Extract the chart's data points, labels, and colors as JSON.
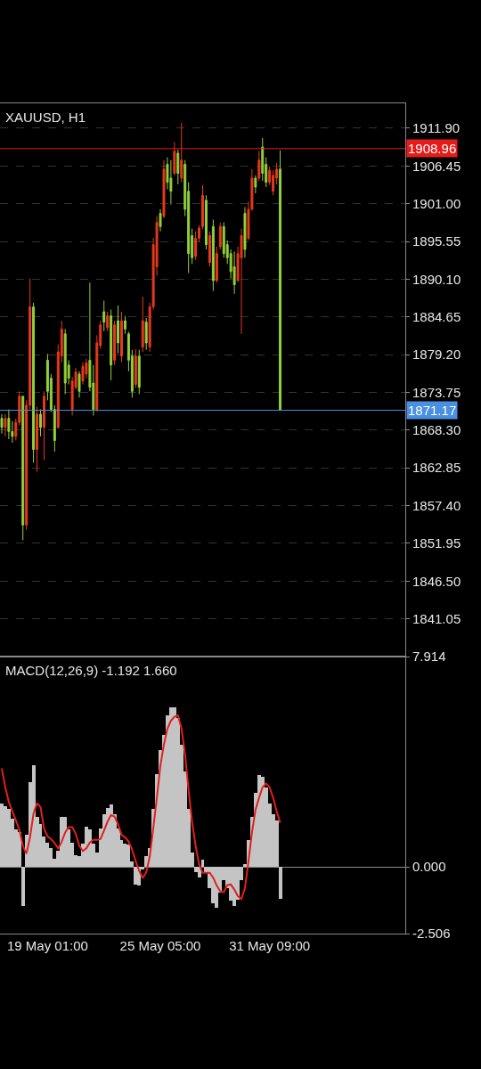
{
  "chart_data": [
    {
      "type": "candlestick",
      "title": "XAUUSD, H1",
      "categories": [
        null,
        null,
        null,
        null,
        null,
        null,
        null,
        null,
        null,
        null,
        null,
        null,
        null,
        null,
        null,
        null,
        null,
        null,
        null,
        null,
        null,
        null,
        null,
        null,
        null,
        null,
        null,
        null,
        null,
        null,
        null,
        null,
        null,
        null,
        null,
        null,
        null,
        null,
        null,
        null,
        null,
        null,
        null,
        null,
        null,
        null,
        null,
        null,
        null,
        null,
        null,
        null,
        null,
        null,
        null,
        null,
        null,
        null,
        null,
        null,
        null,
        null,
        null,
        null,
        null,
        null,
        null,
        null,
        null,
        null,
        null,
        null,
        null,
        null,
        null,
        null,
        null,
        null,
        null,
        null,
        null,
        null,
        null,
        null,
        null,
        null,
        null,
        null,
        null,
        null,
        null,
        null,
        null,
        null,
        null,
        null,
        null,
        null,
        null,
        null,
        null,
        null,
        null,
        null,
        null,
        null,
        null,
        null,
        null,
        null,
        null,
        null,
        null,
        null,
        null
      ],
      "ohlc": [
        [
          1870.0,
          1870.6,
          1867.8,
          1868.7
        ],
        [
          1868.7,
          1870.6,
          1867.4,
          1870.0
        ],
        [
          1870.0,
          1871.3,
          1867.0,
          1868.1
        ],
        [
          1868.1,
          1869.6,
          1866.5,
          1867.4
        ],
        [
          1867.4,
          1870.0,
          1866.8,
          1869.4
        ],
        [
          1869.4,
          1873.9,
          1869.0,
          1873.2
        ],
        [
          1873.2,
          1873.2,
          1852.4,
          1854.6
        ],
        [
          1854.6,
          1872.6,
          1853.9,
          1871.9
        ],
        [
          1871.9,
          1890.2,
          1871.3,
          1886.1
        ],
        [
          1886.1,
          1886.7,
          1863.6,
          1865.5
        ],
        [
          1865.5,
          1871.7,
          1862.3,
          1870.6
        ],
        [
          1870.6,
          1871.3,
          1867.4,
          1868.7
        ],
        [
          1868.7,
          1873.9,
          1864.0,
          1873.2
        ],
        [
          1878.4,
          1879.3,
          1872.6,
          1873.9
        ],
        [
          1875.8,
          1876.4,
          1870.9,
          1871.3
        ],
        [
          1871.3,
          1871.9,
          1865.2,
          1866.8
        ],
        [
          1868.7,
          1880.7,
          1868.5,
          1879.6
        ],
        [
          1879.0,
          1884.1,
          1878.1,
          1882.9
        ],
        [
          1882.2,
          1882.9,
          1873.5,
          1875.1
        ],
        [
          1877.7,
          1878.4,
          1874.9,
          1875.8
        ],
        [
          1871.3,
          1876.0,
          1870.4,
          1875.4
        ],
        [
          1874.5,
          1877.3,
          1874.2,
          1876.7
        ],
        [
          1876.4,
          1876.8,
          1873.0,
          1873.9
        ],
        [
          1875.4,
          1878.1,
          1874.9,
          1877.5
        ],
        [
          1876.4,
          1878.6,
          1875.8,
          1878.0
        ],
        [
          1878.4,
          1889.6,
          1873.9,
          1874.5
        ],
        [
          1875.1,
          1877.7,
          1870.4,
          1871.3
        ],
        [
          1871.3,
          1882.0,
          1871.0,
          1880.9
        ],
        [
          1880.5,
          1884.1,
          1880.0,
          1883.5
        ],
        [
          1885.4,
          1887.0,
          1882.6,
          1883.9
        ],
        [
          1883.1,
          1885.4,
          1882.6,
          1884.8
        ],
        [
          1884.8,
          1885.7,
          1875.5,
          1877.7
        ],
        [
          1878.4,
          1884.1,
          1877.7,
          1883.5
        ],
        [
          1884.1,
          1886.3,
          1879.4,
          1880.9
        ],
        [
          1879.0,
          1885.4,
          1878.1,
          1884.1
        ],
        [
          1884.1,
          1884.8,
          1882.2,
          1882.9
        ],
        [
          1882.2,
          1882.5,
          1876.8,
          1878.4
        ],
        [
          1879.0,
          1879.9,
          1873.0,
          1873.9
        ],
        [
          1874.9,
          1880.0,
          1874.4,
          1879.0
        ],
        [
          1879.0,
          1879.9,
          1873.5,
          1874.5
        ],
        [
          1880.3,
          1887.6,
          1879.6,
          1884.1
        ],
        [
          1883.9,
          1884.5,
          1879.9,
          1880.9
        ],
        [
          1880.3,
          1886.7,
          1879.6,
          1886.1
        ],
        [
          1886.1,
          1896.1,
          1885.7,
          1895.1
        ],
        [
          1891.9,
          1899.2,
          1890.6,
          1898.3
        ],
        [
          1899.6,
          1900.2,
          1897.0,
          1897.7
        ],
        [
          1899.2,
          1907.3,
          1898.9,
          1906.0
        ],
        [
          1906.7,
          1907.7,
          1903.1,
          1904.1
        ],
        [
          1904.7,
          1907.3,
          1900.9,
          1902.8
        ],
        [
          1905.4,
          1909.9,
          1905.1,
          1908.6
        ],
        [
          1908.3,
          1908.8,
          1903.8,
          1905.4
        ],
        [
          1904.7,
          1912.7,
          1904.1,
          1907.3
        ],
        [
          1906.7,
          1907.3,
          1899.2,
          1900.2
        ],
        [
          1902.8,
          1904.1,
          1891.0,
          1893.8
        ],
        [
          1896.4,
          1897.4,
          1892.3,
          1893.2
        ],
        [
          1893.4,
          1897.0,
          1892.9,
          1896.0
        ],
        [
          1896.0,
          1897.9,
          1895.5,
          1897.5
        ],
        [
          1897.7,
          1903.7,
          1897.3,
          1902.2
        ],
        [
          1901.5,
          1902.2,
          1894.4,
          1895.1
        ],
        [
          1892.5,
          1897.0,
          1891.9,
          1896.4
        ],
        [
          1897.7,
          1898.7,
          1888.4,
          1889.9
        ],
        [
          1889.9,
          1894.8,
          1889.6,
          1893.8
        ],
        [
          1894.8,
          1898.3,
          1894.4,
          1897.7
        ],
        [
          1897.7,
          1898.3,
          1893.2,
          1893.8
        ],
        [
          1895.1,
          1895.7,
          1892.3,
          1893.2
        ],
        [
          1893.8,
          1894.4,
          1890.2,
          1891.2
        ],
        [
          1891.9,
          1894.1,
          1888.0,
          1889.3
        ],
        [
          1889.9,
          1894.8,
          1889.7,
          1893.8
        ],
        [
          1893.2,
          1897.4,
          1882.2,
          1896.4
        ],
        [
          1899.6,
          1900.5,
          1893.2,
          1894.4
        ],
        [
          1896.0,
          1901.3,
          1895.7,
          1900.2
        ],
        [
          1900.2,
          1906.0,
          1900.0,
          1904.7
        ],
        [
          1904.7,
          1905.1,
          1902.5,
          1903.4
        ],
        [
          1904.7,
          1908.6,
          1904.3,
          1907.3
        ],
        [
          1909.2,
          1910.5,
          1904.3,
          1905.4
        ],
        [
          1906.7,
          1907.7,
          1903.4,
          1904.1
        ],
        [
          1904.1,
          1906.4,
          1903.7,
          1905.8
        ],
        [
          1902.8,
          1905.8,
          1902.2,
          1905.1
        ],
        [
          1904.7,
          1906.9,
          1903.8,
          1906.0
        ],
        [
          1906.0,
          1908.7,
          1871.17,
          1871.17
        ],
        null,
        null,
        null,
        null,
        null,
        null,
        null,
        null,
        null,
        null,
        null,
        null,
        null,
        null,
        null,
        null,
        null,
        null,
        null,
        null,
        null,
        null,
        null,
        null,
        null,
        null,
        null,
        null,
        null,
        null,
        null,
        null,
        null,
        null,
        null
      ],
      "colors": [
        "#93d13a",
        "#e8391d",
        "#93d13a",
        "#93d13a",
        "#e8391d",
        "#e8391d",
        "#93d13a",
        "#e8391d",
        "#e8391d",
        "#93d13a",
        "#e8391d",
        "#93d13a",
        "#e8391d",
        "#93d13a",
        "#93d13a",
        "#93d13a",
        "#e8391d",
        "#e8391d",
        "#93d13a",
        "#93d13a",
        "#e8391d",
        "#e8391d",
        "#93d13a",
        "#e8391d",
        "#e8391d",
        "#93d13a",
        "#93d13a",
        "#e8391d",
        "#e8391d",
        "#93d13a",
        "#e8391d",
        "#93d13a",
        "#e8391d",
        "#93d13a",
        "#e8391d",
        "#93d13a",
        "#93d13a",
        "#93d13a",
        "#e8391d",
        "#93d13a",
        "#e8391d",
        "#93d13a",
        "#e8391d",
        "#e8391d",
        "#e8391d",
        "#93d13a",
        "#e8391d",
        "#93d13a",
        "#93d13a",
        "#e8391d",
        "#93d13a",
        "#e8391d",
        "#93d13a",
        "#93d13a",
        "#93d13a",
        "#e8391d",
        "#e8391d",
        "#e8391d",
        "#93d13a",
        "#e8391d",
        "#93d13a",
        "#e8391d",
        "#e8391d",
        "#93d13a",
        "#93d13a",
        "#93d13a",
        "#93d13a",
        "#e8391d",
        "#e8391d",
        "#93d13a",
        "#e8391d",
        "#e8391d",
        "#93d13a",
        "#e8391d",
        "#93d13a",
        "#93d13a",
        "#e8391d",
        "#e8391d",
        "#e8391d",
        "#93d13a",
        null,
        null,
        null,
        null,
        null,
        null,
        null,
        null,
        null,
        null,
        null,
        null,
        null,
        null,
        null,
        null,
        null,
        null,
        null,
        null,
        null,
        null,
        null,
        null,
        null,
        null,
        null,
        null,
        null,
        null,
        null,
        null,
        null,
        null,
        null
      ],
      "ylim": [
        1835.6,
        1915.5
      ],
      "yticks": [
        {
          "value": 1911.9,
          "label": "1911.90"
        },
        1906.45,
        {
          "value": 1901,
          "label": "1901.00"
        },
        1895.55,
        {
          "value": 1890.1,
          "label": "1890.10"
        },
        1884.65,
        {
          "value": 1879.2,
          "label": "1879.20"
        },
        1873.75,
        {
          "value": 1868.3,
          "label": "1868.30"
        },
        1862.85,
        {
          "value": 1857.4,
          "label": "1857.40"
        },
        1851.95,
        {
          "value": 1846.5,
          "label": "1846.50"
        },
        1841.05
      ],
      "grid": "y",
      "ref_lines": [
        {
          "axis": "y",
          "value": 1908.96,
          "label": "1908.96",
          "color": "#e51c1c"
        },
        {
          "axis": "y",
          "value": 1871.17,
          "label": "1871.17",
          "color": "#4a90e2"
        }
      ]
    },
    {
      "type": "bar",
      "title": "MACD(12,26,9) -1.192 1.660",
      "categories": [
        null,
        null,
        null,
        null,
        null,
        null,
        null,
        null,
        null,
        null,
        null,
        null,
        null,
        "19 May 01:00",
        null,
        null,
        null,
        null,
        null,
        null,
        null,
        null,
        null,
        null,
        null,
        null,
        null,
        null,
        null,
        null,
        null,
        null,
        null,
        null,
        null,
        null,
        null,
        null,
        null,
        null,
        null,
        null,
        null,
        null,
        null,
        "25 May 05:00",
        null,
        null,
        null,
        null,
        null,
        null,
        null,
        null,
        null,
        null,
        null,
        null,
        null,
        null,
        null,
        null,
        null,
        null,
        null,
        null,
        null,
        null,
        null,
        null,
        null,
        null,
        null,
        null,
        null,
        null,
        "31 May 09:00",
        null,
        null,
        null,
        null,
        null,
        null,
        null,
        null,
        null,
        null,
        null,
        null,
        null,
        null,
        null,
        null,
        null,
        null,
        null,
        null,
        null,
        null,
        null,
        null,
        null,
        null,
        null,
        null,
        null,
        null,
        null,
        null,
        null,
        null,
        null,
        null,
        null,
        null
      ],
      "series": [
        {
          "color": "#c4c4c4",
          "values": [
            2.37,
            2.3,
            2.2,
            1.8,
            1.4,
            1.3,
            -1.47,
            1.2,
            3.2,
            3.81,
            1.9,
            1.6,
            1.15,
            0.9,
            0.7,
            0.3,
            0.6,
            1.9,
            1.9,
            1.4,
            0.9,
            0.45,
            0.4,
            0.89,
            1.5,
            1.4,
            0.89,
            0.55,
            1.45,
            2.0,
            2.23,
            2.35,
            2.0,
            1.46,
            1.0,
            0.89,
            0.85,
            0.2,
            -0.66,
            -0.7,
            -0.1,
            0.4,
            0.7,
            2.2,
            3.5,
            4.4,
            4.95,
            5.7,
            6.0,
            6.0,
            5.6,
            4.6,
            3.6,
            2.2,
            0.55,
            -0.2,
            -0.4,
            0.28,
            -0.2,
            -0.8,
            -1.35,
            -1.55,
            -0.95,
            -0.5,
            -0.8,
            -1.25,
            -1.47,
            -1.23,
            -0.5,
            0.1,
            1.0,
            1.9,
            2.8,
            3.45,
            3.38,
            3.0,
            2.4,
            2.0,
            1.75,
            -1.192,
            null,
            null,
            null,
            null,
            null,
            null,
            null,
            null,
            null,
            null,
            null,
            null,
            null,
            null,
            null,
            null,
            null,
            null,
            null,
            null,
            null,
            null,
            null,
            null,
            null,
            null,
            null,
            null,
            null,
            null,
            null,
            null,
            null,
            null,
            null
          ]
        },
        {
          "type": "line",
          "color": "#e31e1e",
          "values": [
            3.71,
            3.0,
            2.45,
            2.1,
            1.75,
            1.4,
            0.8,
            0.5,
            1.1,
            2.0,
            2.4,
            2.25,
            1.45,
            1.15,
            1.05,
            0.9,
            0.7,
            0.95,
            1.3,
            1.5,
            1.5,
            1.25,
            0.8,
            0.6,
            0.7,
            0.92,
            1.02,
            1.02,
            1.05,
            1.36,
            1.7,
            1.95,
            1.9,
            1.6,
            1.2,
            1.12,
            0.95,
            0.65,
            0.22,
            -0.15,
            -0.42,
            -0.2,
            0.4,
            1.46,
            2.6,
            3.8,
            4.6,
            5.2,
            5.5,
            5.65,
            5.7,
            5.2,
            4.25,
            2.9,
            1.7,
            0.8,
            0.1,
            -0.22,
            -0.22,
            -0.22,
            -0.4,
            -0.7,
            -0.92,
            -0.95,
            -0.68,
            -0.66,
            -0.85,
            -1.1,
            -1.2,
            -0.8,
            0.2,
            1.3,
            2.15,
            2.6,
            3.0,
            3.14,
            3.0,
            2.6,
            2.1,
            1.66,
            null,
            null,
            null,
            null,
            null,
            null,
            null,
            null,
            null,
            null,
            null,
            null,
            null,
            null,
            null,
            null,
            null,
            null,
            null,
            null,
            null,
            null,
            null,
            null,
            null,
            null,
            null,
            null,
            null,
            null,
            null,
            null,
            null,
            null,
            null
          ]
        }
      ],
      "ylim": [
        -2.506,
        7.914
      ],
      "yticks": [
        7.914,
        {
          "value": 0,
          "label": "0.000"
        },
        -2.506
      ],
      "grid": "y"
    }
  ]
}
